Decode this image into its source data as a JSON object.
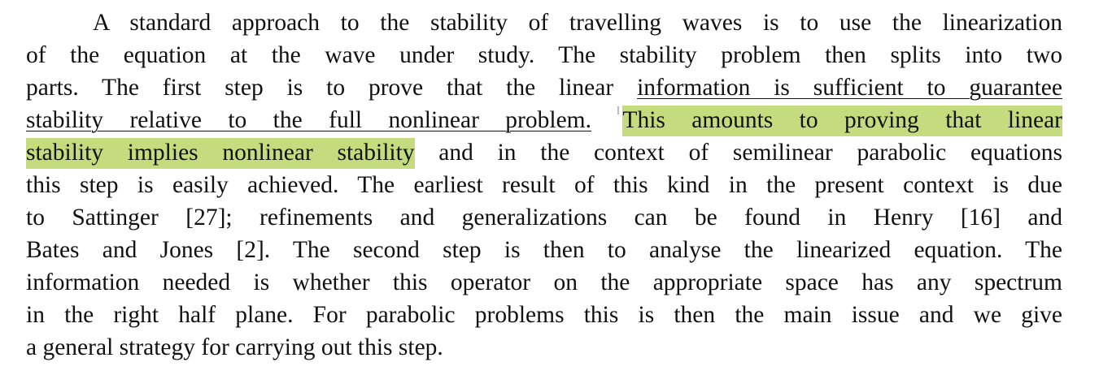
{
  "paragraph": {
    "l1": "A standard approach to the stability of travelling waves is to use the linearization",
    "l2": "of the equation at the wave under study. The stability problem then splits into two",
    "l3a": "parts. The first step is to prove that the linear ",
    "l3b": "information is sufficient to guarantee",
    "l4a": "stability relative to the full nonlinear problem.",
    "l4b": "This amounts to proving that linear",
    "l5a": "stability implies nonlinear stability",
    "l5b": " and in the context of semilinear parabolic equations",
    "l6": "this step is easily achieved. The earliest result of this kind in the present context is due",
    "l7": "to Sattinger [27]; refinements and generalizations can be found in Henry [16] and",
    "l8": "Bates and Jones [2]. The second step is then to analyse the linearized equation. The",
    "l9": "information needed is whether this operator on the appropriate space has any spectrum",
    "l10": "in the right half plane. For parabolic problems this is then the main issue and we give",
    "l11": "a general strategy for carrying out this step."
  },
  "colors": {
    "highlight": "#c5dc7e",
    "text": "#111111"
  }
}
